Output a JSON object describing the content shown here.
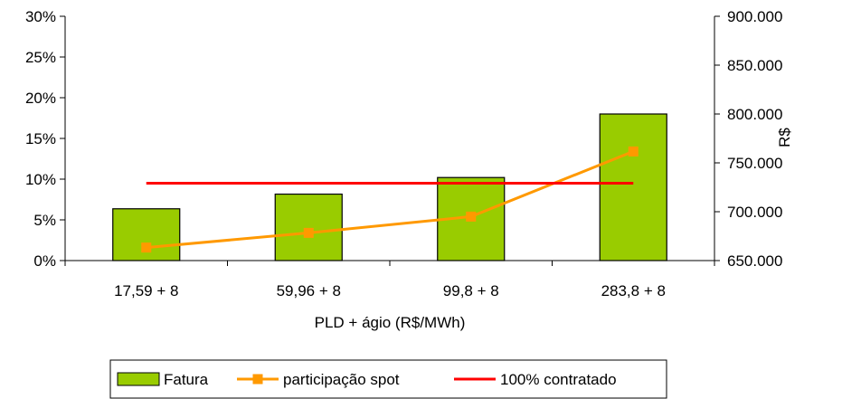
{
  "chart_data": {
    "type": "bar",
    "categories": [
      "17,59 + 8",
      "59,96 + 8",
      "99,8 + 8",
      "283,8 + 8"
    ],
    "xlabel": "PLD + ágio (R$/MWh)",
    "y_left": {
      "ylim": [
        0,
        0.3
      ],
      "ticks": [
        0,
        0.05,
        0.1,
        0.15,
        0.2,
        0.25,
        0.3
      ],
      "tick_labels": [
        "0%",
        "5%",
        "10%",
        "15%",
        "20%",
        "25%",
        "30%"
      ]
    },
    "y_right": {
      "label": "R$",
      "ylim": [
        650000,
        900000
      ],
      "ticks": [
        650000,
        700000,
        750000,
        800000,
        850000,
        900000
      ],
      "tick_labels": [
        "650.000",
        "700.000",
        "750.000",
        "800.000",
        "850.000",
        "900.000"
      ]
    },
    "series": [
      {
        "name": "Fatura",
        "kind": "bar",
        "axis": "right",
        "color": "#99cc00",
        "values": [
          703000,
          718000,
          735000,
          800000
        ]
      },
      {
        "name": "participação spot",
        "kind": "line",
        "axis": "left",
        "color": "#ff9900",
        "marker": "square",
        "values": [
          0.016,
          0.034,
          0.054,
          0.134
        ]
      },
      {
        "name": "100% contratado",
        "kind": "line",
        "axis": "left",
        "color": "#ff0000",
        "values": [
          0.095,
          0.095,
          0.095,
          0.095
        ]
      }
    ],
    "grid": false,
    "legend_position": "bottom"
  }
}
